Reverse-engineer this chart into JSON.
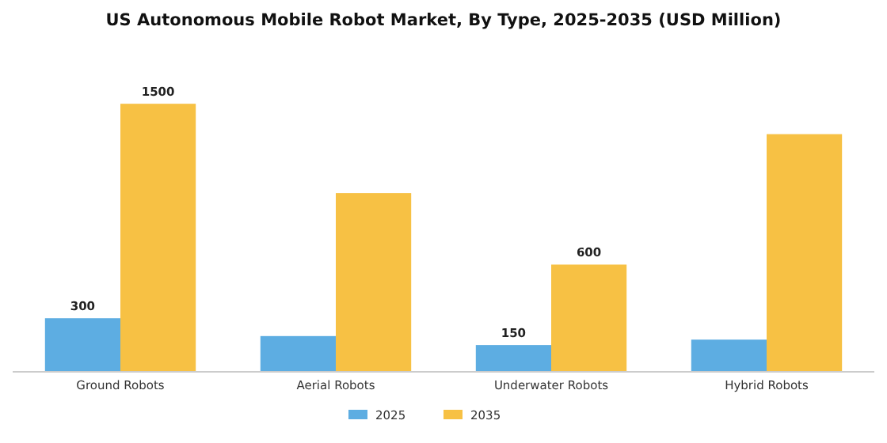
{
  "chart_data": {
    "type": "bar",
    "title": "US Autonomous Mobile Robot Market, By Type, 2025-2035 (USD Million)",
    "categories": [
      "Ground Robots",
      "Aerial Robots",
      "Underwater Robots",
      "Hybrid Robots"
    ],
    "series": [
      {
        "name": "2025",
        "color": "#5dade2",
        "values": [
          300,
          200,
          150,
          180
        ],
        "value_labels": [
          "300",
          null,
          "150",
          null
        ]
      },
      {
        "name": "2035",
        "color": "#f7c144",
        "values": [
          1500,
          1000,
          600,
          1330
        ],
        "value_labels": [
          "1500",
          null,
          "600",
          null
        ]
      }
    ],
    "legend": "bottom",
    "grid": false
  }
}
